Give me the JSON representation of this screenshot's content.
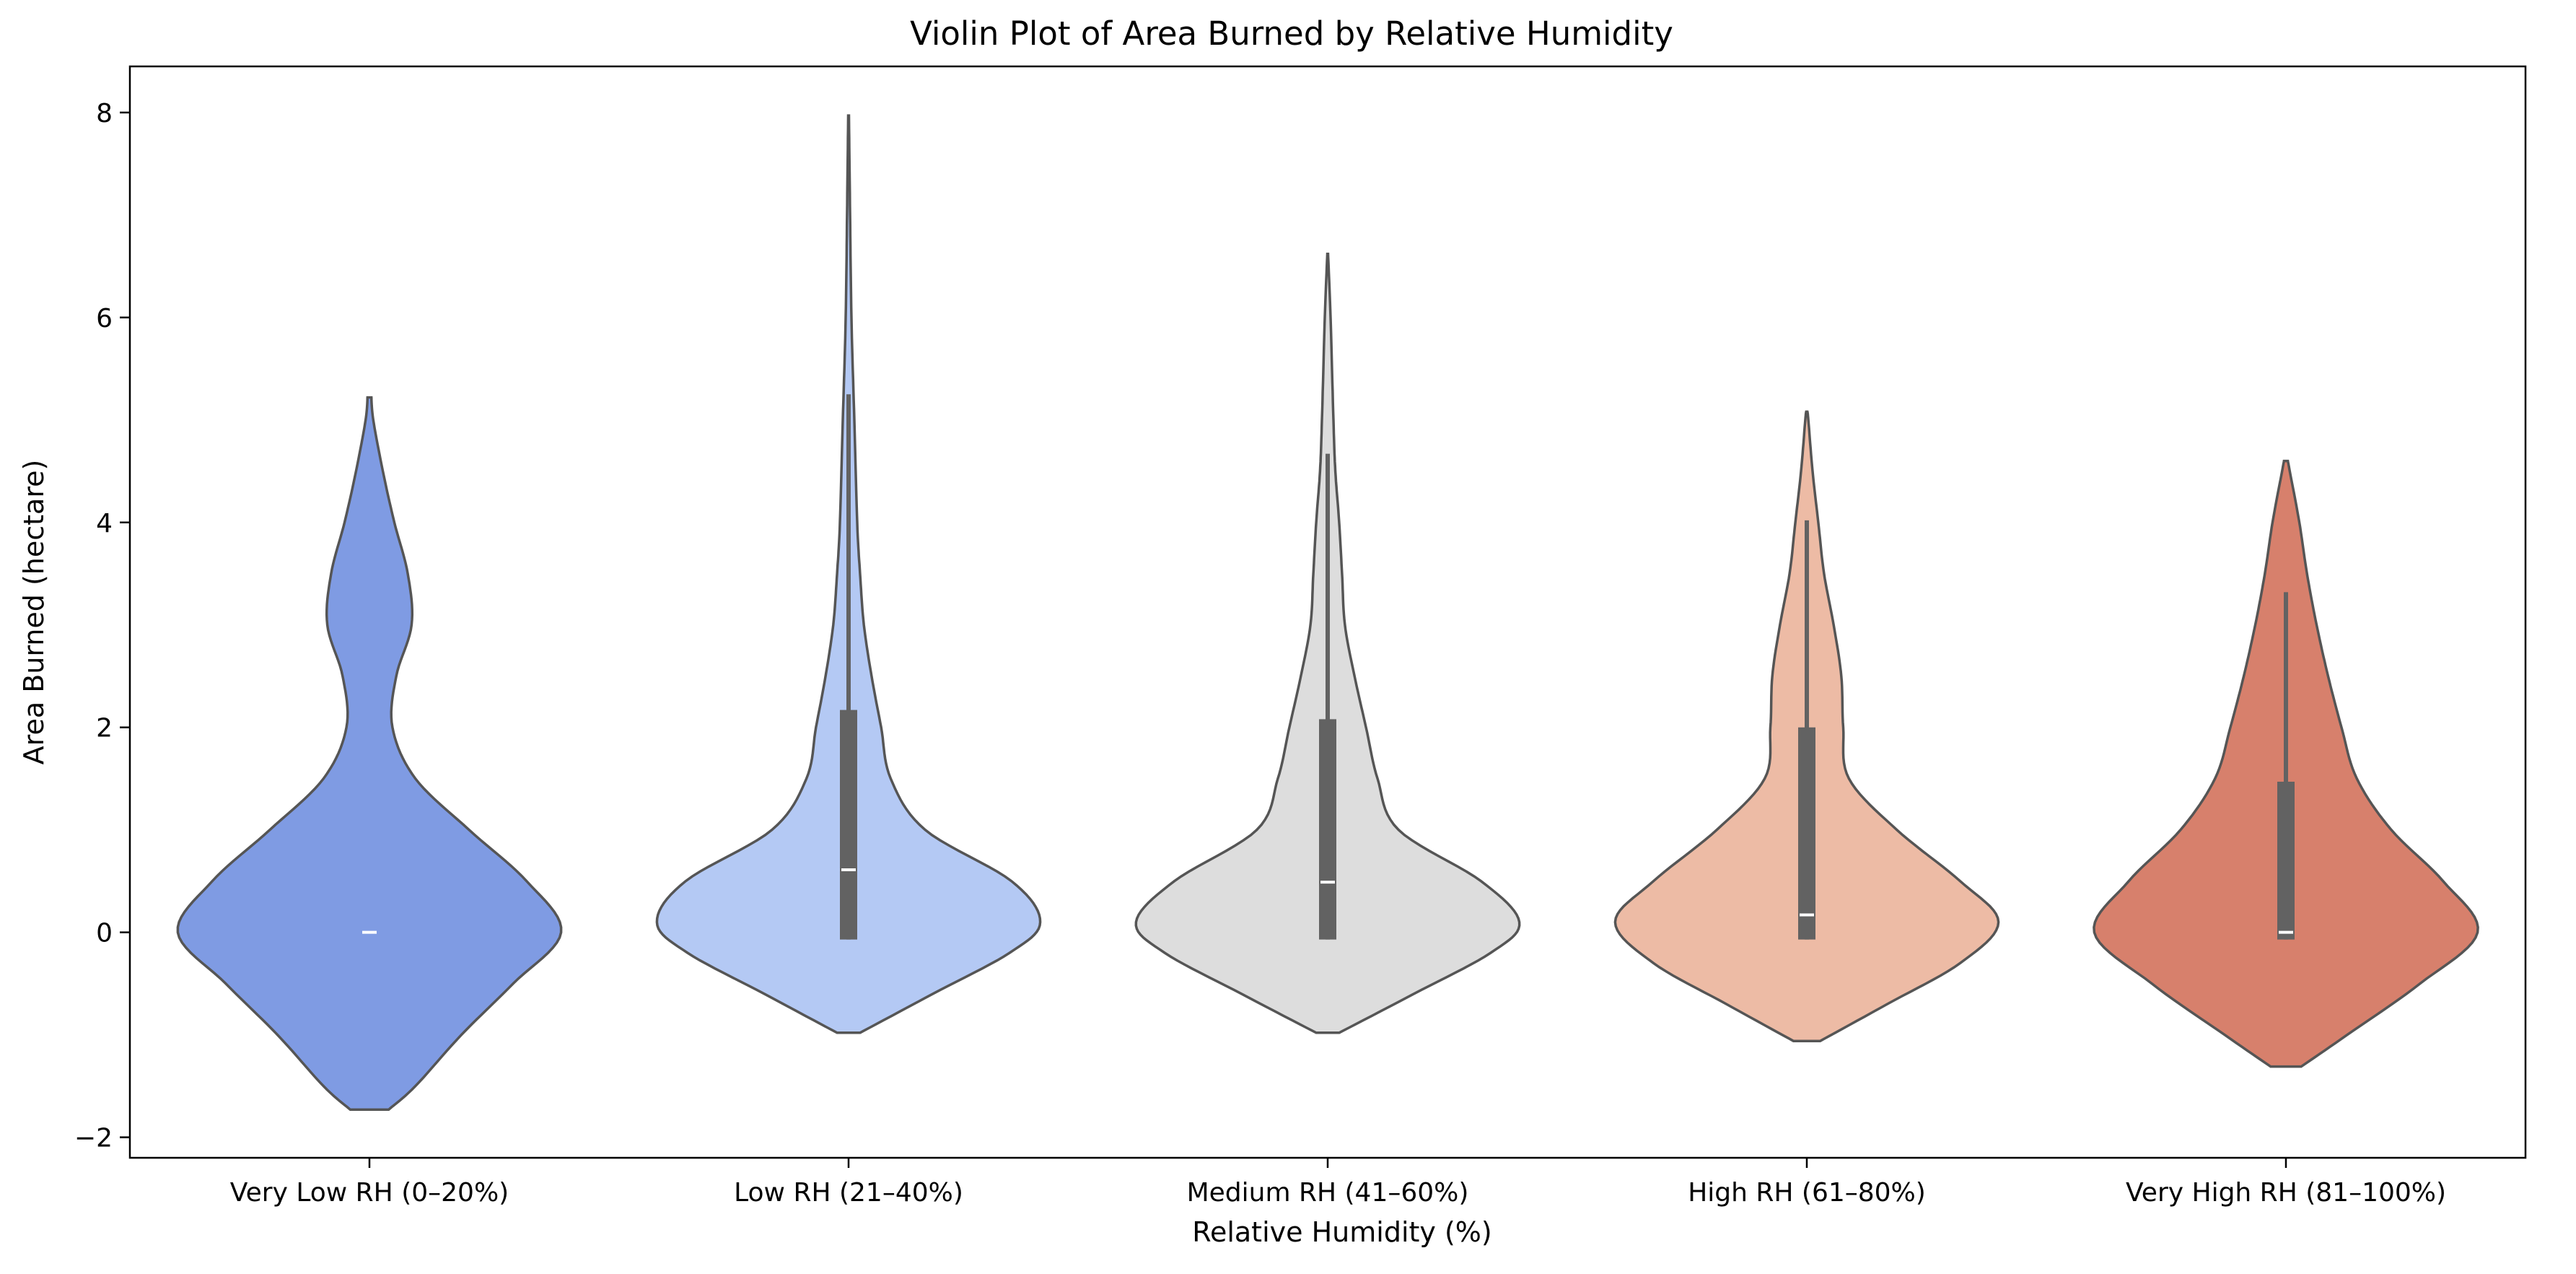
{
  "chart_data": {
    "type": "violin",
    "title": "Violin Plot of Area Burned by Relative Humidity",
    "xlabel": "Relative Humidity (%)",
    "ylabel": "Area Burned (hectare)",
    "ylim": [
      -2.2,
      8.45
    ],
    "yticks": [
      -2,
      0,
      2,
      4,
      6,
      8
    ],
    "ytick_labels": [
      "−2",
      "0",
      "2",
      "4",
      "6",
      "8"
    ],
    "grid": false,
    "legend": "none",
    "categories": [
      "Very Low RH (0–20%)",
      "Low RH (21–40%)",
      "Medium RH (41–60%)",
      "High RH (61–80%)",
      "Very High RH (81–100%)"
    ],
    "series": [
      {
        "color": "#7f9be3",
        "min": -1.73,
        "max": 5.22,
        "box": {
          "q1": 0.0,
          "median": 0.0,
          "q3": 0.0,
          "whisker_low": 0.0,
          "whisker_high": 0.0
        },
        "density": [
          [
            -1.73,
            0.1
          ],
          [
            -1.5,
            0.24
          ],
          [
            -1.0,
            0.48
          ],
          [
            -0.5,
            0.75
          ],
          [
            0.0,
            1.0
          ],
          [
            0.5,
            0.82
          ],
          [
            1.0,
            0.52
          ],
          [
            1.5,
            0.24
          ],
          [
            2.0,
            0.12
          ],
          [
            2.5,
            0.14
          ],
          [
            3.0,
            0.22
          ],
          [
            3.5,
            0.2
          ],
          [
            4.0,
            0.13
          ],
          [
            4.5,
            0.07
          ],
          [
            5.0,
            0.02
          ],
          [
            5.22,
            0.01
          ]
        ]
      },
      {
        "color": "#b4c9f4",
        "min": -0.98,
        "max": 7.97,
        "box": {
          "q1": -0.07,
          "median": 0.61,
          "q3": 2.17,
          "whisker_low": -0.07,
          "whisker_high": 5.25
        },
        "density": [
          [
            -0.98,
            0.06
          ],
          [
            -0.6,
            0.44
          ],
          [
            -0.2,
            0.84
          ],
          [
            0.1,
            1.0
          ],
          [
            0.5,
            0.85
          ],
          [
            1.0,
            0.4
          ],
          [
            1.5,
            0.22
          ],
          [
            2.0,
            0.17
          ],
          [
            2.5,
            0.12
          ],
          [
            3.0,
            0.08
          ],
          [
            3.5,
            0.06
          ],
          [
            4.0,
            0.045
          ],
          [
            5.0,
            0.03
          ],
          [
            6.0,
            0.015
          ],
          [
            7.0,
            0.008
          ],
          [
            7.97,
            0.002
          ]
        ]
      },
      {
        "color": "#dddddd",
        "min": -0.98,
        "max": 6.62,
        "box": {
          "q1": -0.07,
          "median": 0.49,
          "q3": 2.08,
          "whisker_low": -0.07,
          "whisker_high": 4.67
        },
        "density": [
          [
            -0.98,
            0.06
          ],
          [
            -0.6,
            0.45
          ],
          [
            -0.2,
            0.85
          ],
          [
            0.1,
            1.0
          ],
          [
            0.5,
            0.8
          ],
          [
            1.0,
            0.37
          ],
          [
            1.5,
            0.26
          ],
          [
            2.0,
            0.2
          ],
          [
            2.5,
            0.14
          ],
          [
            3.0,
            0.09
          ],
          [
            3.5,
            0.075
          ],
          [
            4.0,
            0.06
          ],
          [
            4.5,
            0.04
          ],
          [
            5.0,
            0.03
          ],
          [
            6.0,
            0.015
          ],
          [
            6.62,
            0.002
          ]
        ]
      },
      {
        "color": "#edbba5",
        "min": -1.06,
        "max": 5.08,
        "box": {
          "q1": -0.07,
          "median": 0.17,
          "q3": 2.0,
          "whisker_low": -0.07,
          "whisker_high": 4.02
        },
        "density": [
          [
            -1.06,
            0.07
          ],
          [
            -0.7,
            0.42
          ],
          [
            -0.3,
            0.8
          ],
          [
            0.1,
            1.0
          ],
          [
            0.5,
            0.8
          ],
          [
            1.0,
            0.47
          ],
          [
            1.5,
            0.22
          ],
          [
            2.0,
            0.19
          ],
          [
            2.5,
            0.18
          ],
          [
            3.0,
            0.14
          ],
          [
            3.5,
            0.09
          ],
          [
            4.0,
            0.06
          ],
          [
            4.5,
            0.03
          ],
          [
            5.0,
            0.008
          ],
          [
            5.08,
            0.003
          ]
        ]
      },
      {
        "color": "#d7806c",
        "min": -1.31,
        "max": 4.6,
        "box": {
          "q1": -0.07,
          "median": 0.0,
          "q3": 1.47,
          "whisker_low": -0.07,
          "whisker_high": 3.32
        },
        "density": [
          [
            -1.31,
            0.08
          ],
          [
            -1.0,
            0.32
          ],
          [
            -0.5,
            0.7
          ],
          [
            0.0,
            1.0
          ],
          [
            0.5,
            0.82
          ],
          [
            1.0,
            0.55
          ],
          [
            1.5,
            0.37
          ],
          [
            2.0,
            0.29
          ],
          [
            2.5,
            0.22
          ],
          [
            3.0,
            0.16
          ],
          [
            3.5,
            0.11
          ],
          [
            4.0,
            0.07
          ],
          [
            4.5,
            0.02
          ],
          [
            4.6,
            0.01
          ]
        ]
      }
    ]
  }
}
